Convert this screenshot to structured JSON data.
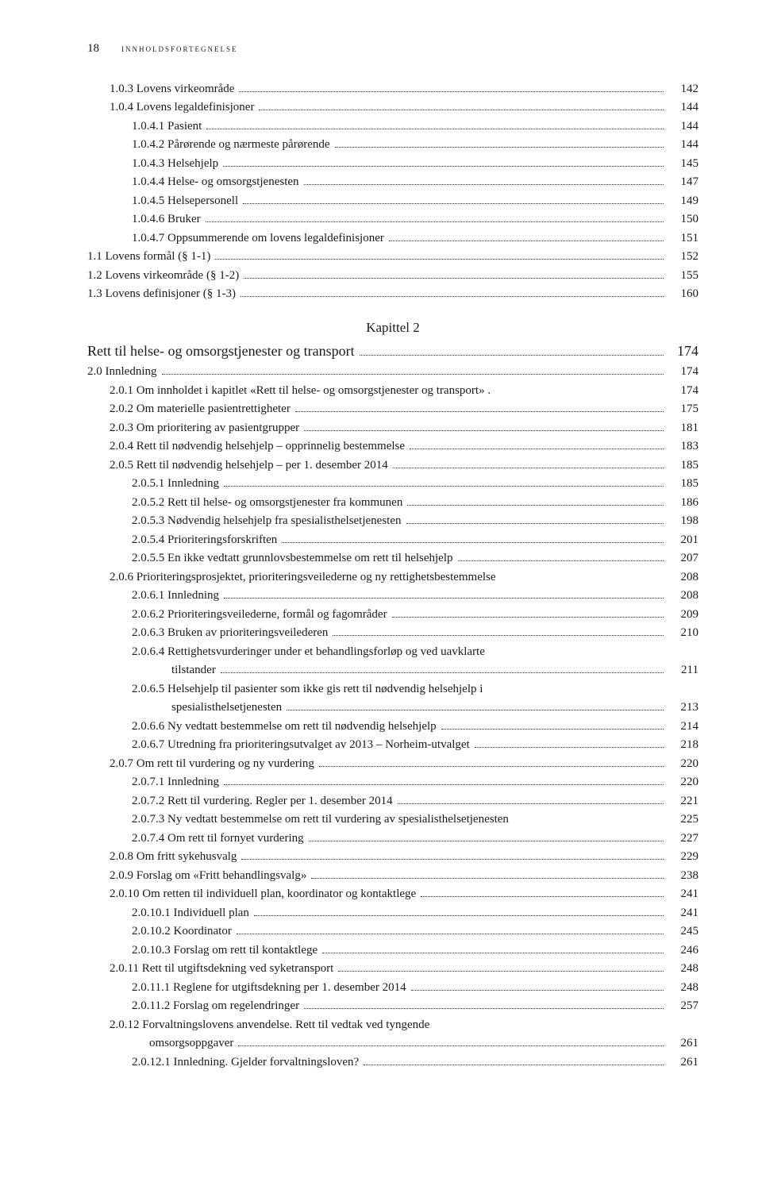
{
  "page_number": "18",
  "header_title": "innholdsfortegnelse",
  "chapter2_heading": "Kapittel 2",
  "entries": [
    {
      "indent": 1,
      "text": "1.0.3 Lovens virkeområde",
      "page": "142"
    },
    {
      "indent": 1,
      "text": "1.0.4 Lovens legaldefinisjoner",
      "page": "144"
    },
    {
      "indent": 2,
      "text": "1.0.4.1 Pasient",
      "page": "144"
    },
    {
      "indent": 2,
      "text": "1.0.4.2 Pårørende og nærmeste pårørende",
      "page": "144"
    },
    {
      "indent": 2,
      "text": "1.0.4.3 Helsehjelp",
      "page": "145"
    },
    {
      "indent": 2,
      "text": "1.0.4.4 Helse- og omsorgstjenesten",
      "page": "147"
    },
    {
      "indent": 2,
      "text": "1.0.4.5 Helsepersonell",
      "page": "149"
    },
    {
      "indent": 2,
      "text": "1.0.4.6 Bruker",
      "page": "150"
    },
    {
      "indent": 2,
      "text": "1.0.4.7 Oppsummerende om lovens legaldefinisjoner",
      "page": "151"
    },
    {
      "indent": 0,
      "text": "1.1 Lovens formål (§ 1-1)",
      "page": "152"
    },
    {
      "indent": 0,
      "text": "1.2 Lovens virkeområde (§ 1-2)",
      "page": "155"
    },
    {
      "indent": 0,
      "text": "1.3 Lovens definisjoner (§ 1-3)",
      "page": "160"
    },
    {
      "type": "chapter"
    },
    {
      "indent": 0,
      "text": "Rett til helse- og omsorgstjenester og transport",
      "page": "174",
      "class": "chapter-title-line"
    },
    {
      "indent": 0,
      "text": "2.0 Innledning",
      "page": "174"
    },
    {
      "indent": 1,
      "text": "2.0.1 Om innholdet i kapitlet «Rett til helse- og omsorgstjenester og transport» .",
      "page": "174",
      "nodots": true
    },
    {
      "indent": 1,
      "text": "2.0.2 Om materielle pasientrettigheter",
      "page": "175"
    },
    {
      "indent": 1,
      "text": "2.0.3 Om prioritering av pasientgrupper",
      "page": "181"
    },
    {
      "indent": 1,
      "text": "2.0.4 Rett til nødvendig helsehjelp – opprinnelig bestemmelse",
      "page": "183"
    },
    {
      "indent": 1,
      "text": "2.0.5 Rett til nødvendig helsehjelp – per 1. desember 2014",
      "page": "185"
    },
    {
      "indent": 2,
      "text": "2.0.5.1 Innledning",
      "page": "185"
    },
    {
      "indent": 2,
      "text": "2.0.5.2 Rett til helse- og omsorgstjenester fra kommunen",
      "page": "186"
    },
    {
      "indent": 2,
      "text": "2.0.5.3 Nødvendig helsehjelp fra spesialisthelsetjenesten",
      "page": "198"
    },
    {
      "indent": 2,
      "text": "2.0.5.4 Prioriteringsforskriften",
      "page": "201"
    },
    {
      "indent": 2,
      "text": "2.0.5.5 En ikke vedtatt grunnlovsbestemmelse om rett til helsehjelp",
      "page": "207"
    },
    {
      "indent": 1,
      "text": "2.0.6 Prioriteringsprosjektet, prioriteringsveilederne og ny rettighetsbestemmelse",
      "page": "208",
      "nodots": true
    },
    {
      "indent": 2,
      "text": "2.0.6.1 Innledning",
      "page": "208"
    },
    {
      "indent": 2,
      "text": "2.0.6.2 Prioriteringsveilederne, formål og fagområder",
      "page": "209"
    },
    {
      "indent": 2,
      "text": "2.0.6.3 Bruken av prioriteringsveilederen",
      "page": "210"
    },
    {
      "indent": 2,
      "text": "2.0.6.4 Rettighetsvurderinger under et behandlingsforløp og ved uavklarte",
      "wrap": "tilstander",
      "page": "211"
    },
    {
      "indent": 2,
      "text": "2.0.6.5 Helsehjelp til pasienter som ikke gis rett til nødvendig helsehjelp i",
      "wrap": "spesialisthelsetjenesten",
      "page": "213"
    },
    {
      "indent": 2,
      "text": "2.0.6.6 Ny vedtatt bestemmelse om rett til nødvendig helsehjelp",
      "page": "214"
    },
    {
      "indent": 2,
      "text": "2.0.6.7 Utredning fra prioriteringsutvalget av 2013 – Norheim-utvalget",
      "page": "218"
    },
    {
      "indent": 1,
      "text": "2.0.7 Om rett til vurdering og ny vurdering",
      "page": "220"
    },
    {
      "indent": 2,
      "text": "2.0.7.1 Innledning",
      "page": "220"
    },
    {
      "indent": 2,
      "text": "2.0.7.2 Rett til vurdering. Regler per 1. desember 2014",
      "page": "221"
    },
    {
      "indent": 2,
      "text": "2.0.7.3 Ny vedtatt bestemmelse om rett til vurdering av spesialisthelsetjenesten",
      "page": "225",
      "nodots": true
    },
    {
      "indent": 2,
      "text": "2.0.7.4 Om rett til fornyet vurdering",
      "page": "227"
    },
    {
      "indent": 1,
      "text": "2.0.8 Om fritt sykehusvalg",
      "page": "229"
    },
    {
      "indent": 1,
      "text": "2.0.9 Forslag om «Fritt behandlingsvalg»",
      "page": "238"
    },
    {
      "indent": 1,
      "text": "2.0.10 Om retten til individuell plan, koordinator og kontaktlege",
      "page": "241"
    },
    {
      "indent": 2,
      "text": "2.0.10.1 Individuell plan",
      "page": "241"
    },
    {
      "indent": 2,
      "text": "2.0.10.2 Koordinator",
      "page": "245"
    },
    {
      "indent": 2,
      "text": "2.0.10.3 Forslag om rett til kontaktlege",
      "page": "246"
    },
    {
      "indent": 1,
      "text": "2.0.11 Rett til utgiftsdekning ved syketransport",
      "page": "248"
    },
    {
      "indent": 2,
      "text": "2.0.11.1 Reglene for utgiftsdekning per 1. desember 2014",
      "page": "248"
    },
    {
      "indent": 2,
      "text": "2.0.11.2 Forslag om regelendringer",
      "page": "257"
    },
    {
      "indent": 1,
      "text": "2.0.12 Forvaltningslovens anvendelse. Rett til vedtak ved tyngende",
      "wrap": "omsorgsoppgaver",
      "page": "261"
    },
    {
      "indent": 2,
      "text": "2.0.12.1 Innledning. Gjelder forvaltningsloven?",
      "page": "261"
    }
  ]
}
